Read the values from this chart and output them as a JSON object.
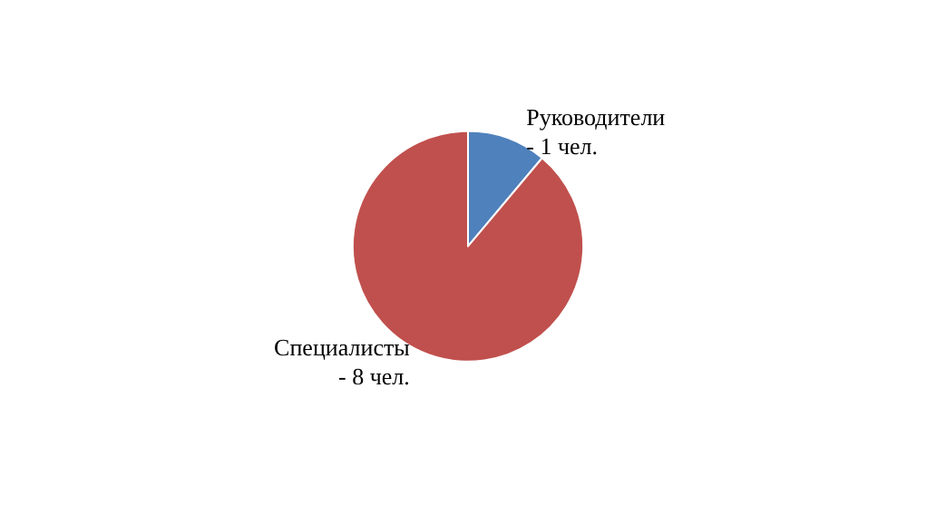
{
  "chart_data": {
    "type": "pie",
    "categories": [
      "Руководители\n-",
      "Специалисты\n-"
    ],
    "values": [
      1,
      8
    ],
    "value_labels": [
      "1 чел.",
      "8 чел."
    ],
    "colors": [
      "#4f81bd",
      "#c0504d"
    ],
    "legend": false
  }
}
